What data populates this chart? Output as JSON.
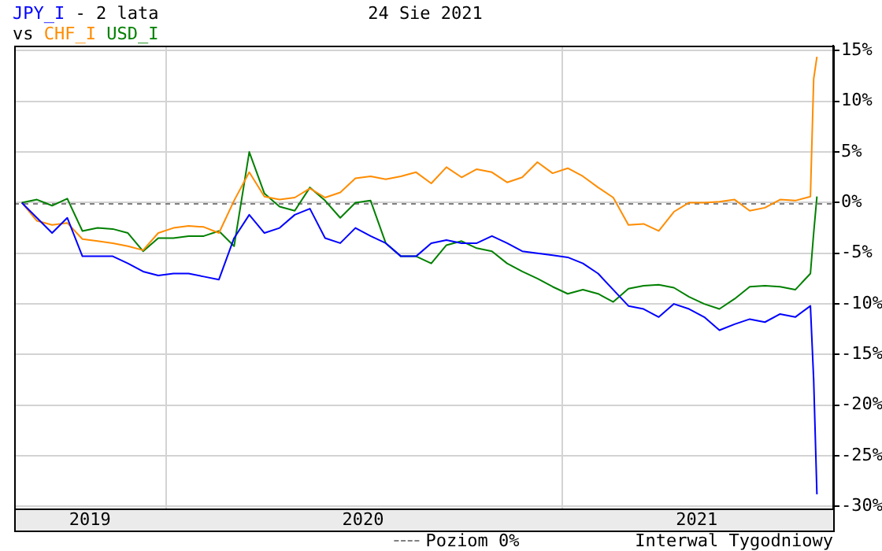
{
  "chart_data": {
    "type": "line",
    "title": "- 2 lata",
    "subtitle": "24 Sie 2021",
    "annotations": [
      "vs",
      "Interwal Tygodniowy"
    ],
    "x": [
      "2019-08-21",
      "2019-09-04",
      "2019-09-18",
      "2019-10-02",
      "2019-10-16",
      "2019-10-30",
      "2019-11-13",
      "2019-11-27",
      "2019-12-11",
      "2019-12-25",
      "2020-01-08",
      "2020-01-22",
      "2020-02-05",
      "2020-02-19",
      "2020-03-04",
      "2020-03-18",
      "2020-04-01",
      "2020-04-15",
      "2020-04-29",
      "2020-05-13",
      "2020-05-27",
      "2020-06-10",
      "2020-06-24",
      "2020-07-08",
      "2020-07-22",
      "2020-08-05",
      "2020-08-19",
      "2020-09-02",
      "2020-09-16",
      "2020-09-30",
      "2020-10-14",
      "2020-10-28",
      "2020-11-11",
      "2020-11-25",
      "2020-12-09",
      "2020-12-23",
      "2021-01-06",
      "2021-01-20",
      "2021-02-03",
      "2021-02-17",
      "2021-03-03",
      "2021-03-17",
      "2021-03-31",
      "2021-04-14",
      "2021-04-28",
      "2021-05-12",
      "2021-05-26",
      "2021-06-09",
      "2021-06-23",
      "2021-07-07",
      "2021-07-21",
      "2021-08-04",
      "2021-08-18",
      "2021-08-21",
      "2021-08-24"
    ],
    "series": [
      {
        "name": "JPY_I",
        "color": "#0000ff",
        "values": [
          0,
          -1.5,
          -3.0,
          -1.5,
          -5.3,
          -5.3,
          -5.3,
          -6.0,
          -6.8,
          -7.2,
          -7.0,
          -7.0,
          -7.3,
          -7.6,
          -3.5,
          -1.2,
          -3.0,
          -2.5,
          -1.2,
          -0.6,
          -3.5,
          -4.0,
          -2.5,
          -3.3,
          -4.0,
          -5.3,
          -5.3,
          -4.0,
          -3.7,
          -4.0,
          -4.0,
          -3.3,
          -4.0,
          -4.8,
          -5.0,
          -5.2,
          -5.4,
          -6.0,
          -7.0,
          -8.6,
          -10.2,
          -10.5,
          -11.3,
          -10.0,
          -10.5,
          -11.3,
          -12.6,
          -12.0,
          -11.5,
          -11.8,
          -11.0,
          -11.3,
          -10.2,
          -17.5,
          -28.8
        ]
      },
      {
        "name": "CHF_I",
        "color": "#ff8c00",
        "values": [
          0,
          -1.8,
          -2.2,
          -2.0,
          -3.6,
          -3.8,
          -4.0,
          -4.3,
          -4.7,
          -3.0,
          -2.5,
          -2.3,
          -2.4,
          -3.0,
          0.2,
          3.0,
          0.6,
          0.3,
          0.5,
          1.4,
          0.5,
          1.0,
          2.4,
          2.6,
          2.3,
          2.6,
          3.0,
          1.9,
          3.5,
          2.5,
          3.3,
          3.0,
          2.0,
          2.5,
          4.0,
          2.9,
          3.4,
          2.6,
          1.5,
          0.5,
          -2.2,
          -2.1,
          -2.8,
          -0.9,
          0.0,
          0.0,
          0.1,
          0.3,
          -0.8,
          -0.5,
          0.3,
          0.2,
          0.6,
          12.2,
          14.4
        ]
      },
      {
        "name": "USD_I",
        "color": "#008000",
        "values": [
          0,
          0.3,
          -0.3,
          0.4,
          -2.8,
          -2.5,
          -2.6,
          -3.0,
          -4.8,
          -3.5,
          -3.5,
          -3.3,
          -3.3,
          -2.8,
          -4.3,
          5.0,
          0.9,
          -0.4,
          -0.8,
          1.5,
          0.2,
          -1.5,
          0.0,
          0.2,
          -4.0,
          -5.3,
          -5.3,
          -6.0,
          -4.2,
          -3.8,
          -4.5,
          -4.8,
          -6.0,
          -6.8,
          -7.5,
          -8.3,
          -9.0,
          -8.6,
          -9.0,
          -9.8,
          -8.5,
          -8.2,
          -8.1,
          -8.4,
          -9.3,
          -10.0,
          -10.5,
          -9.5,
          -8.3,
          -8.2,
          -8.3,
          -8.6,
          -7.0,
          -3.0,
          0.6
        ]
      }
    ],
    "xlim": [
      "2019-08-14",
      "2021-09-08"
    ],
    "xticks": [
      {
        "value": "2019-10-23",
        "label": "2019"
      },
      {
        "value": "2020-01-01",
        "label": null
      },
      {
        "value": "2020-07-01",
        "label": "2020"
      },
      {
        "value": "2021-01-01",
        "label": null
      },
      {
        "value": "2021-05-05",
        "label": "2021"
      }
    ],
    "ylim": [
      -30.2,
      15.5
    ],
    "yticks": [
      {
        "value": -30,
        "label": "-30%"
      },
      {
        "value": -25,
        "label": "-25%"
      },
      {
        "value": -20,
        "label": "-20%"
      },
      {
        "value": -15,
        "label": "-15%"
      },
      {
        "value": -10,
        "label": "-10%"
      },
      {
        "value": -5,
        "label": "-5%"
      },
      {
        "value": 0,
        "label": "0%"
      },
      {
        "value": 5,
        "label": "5%"
      },
      {
        "value": 10,
        "label": "10%"
      },
      {
        "value": 15,
        "label": "15%"
      }
    ],
    "ref_lines": [
      {
        "axis": "y",
        "value": 0,
        "label": "Poziom 0%",
        "color": "#808080",
        "line_style": "dashed"
      }
    ],
    "grid": true,
    "legend": "bottom",
    "marker": "none",
    "line_style": "solid"
  }
}
